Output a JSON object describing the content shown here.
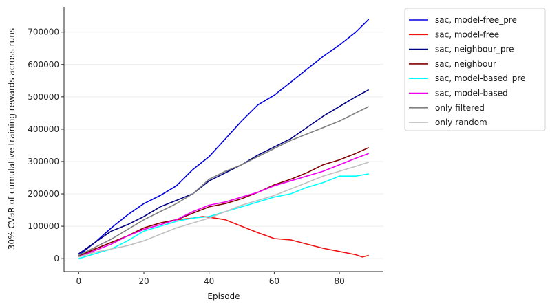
{
  "chart_data": {
    "type": "line",
    "title": "",
    "xlabel": "Episode",
    "ylabel": "30% CVaR of cumulative training rewards across runs",
    "xlim": [
      -4.5,
      93.5
    ],
    "ylim": [
      -40000,
      778000
    ],
    "xticks": [
      0,
      20,
      40,
      60,
      80
    ],
    "yticks": [
      0,
      100000,
      200000,
      300000,
      400000,
      500000,
      600000,
      700000
    ],
    "ygrid": true,
    "legend_position": "outside-right-top",
    "series": [
      {
        "name": "sac, model-free_pre",
        "color": "#0000dd",
        "x": [
          0,
          5,
          10,
          15,
          20,
          25,
          30,
          35,
          40,
          45,
          50,
          55,
          60,
          65,
          70,
          75,
          80,
          85,
          89
        ],
        "y": [
          10000,
          50000,
          95000,
          135000,
          170000,
          195000,
          225000,
          275000,
          315000,
          370000,
          425000,
          475000,
          505000,
          545000,
          585000,
          625000,
          660000,
          700000,
          740000
        ]
      },
      {
        "name": "sac, model-free",
        "color": "#ee1111",
        "x": [
          0,
          5,
          10,
          15,
          20,
          25,
          30,
          35,
          38,
          40,
          45,
          50,
          55,
          60,
          65,
          70,
          75,
          80,
          85,
          87,
          89
        ],
        "y": [
          5000,
          30000,
          50000,
          70000,
          95000,
          110000,
          120000,
          125000,
          130000,
          128000,
          120000,
          100000,
          80000,
          62000,
          58000,
          45000,
          32000,
          22000,
          12000,
          5000,
          10000
        ]
      },
      {
        "name": "sac, neighbour_pre",
        "color": "#000080",
        "x": [
          0,
          5,
          10,
          15,
          20,
          25,
          30,
          35,
          40,
          45,
          50,
          55,
          60,
          65,
          70,
          75,
          80,
          85,
          89
        ],
        "y": [
          15000,
          50000,
          85000,
          105000,
          130000,
          160000,
          180000,
          200000,
          240000,
          265000,
          290000,
          320000,
          345000,
          370000,
          405000,
          440000,
          470000,
          500000,
          522000
        ]
      },
      {
        "name": "sac, neighbour",
        "color": "#800000",
        "x": [
          0,
          5,
          10,
          15,
          20,
          25,
          30,
          35,
          40,
          45,
          50,
          55,
          60,
          65,
          70,
          75,
          80,
          85,
          89
        ],
        "y": [
          8000,
          30000,
          50000,
          70000,
          95000,
          110000,
          120000,
          140000,
          160000,
          170000,
          185000,
          205000,
          228000,
          245000,
          265000,
          290000,
          305000,
          325000,
          343000
        ]
      },
      {
        "name": "sac, model-based_pre",
        "color": "#00ffff",
        "x": [
          0,
          5,
          10,
          15,
          20,
          25,
          30,
          35,
          40,
          45,
          50,
          55,
          60,
          65,
          70,
          75,
          80,
          85,
          89
        ],
        "y": [
          0,
          15000,
          30000,
          55000,
          85000,
          100000,
          115000,
          125000,
          130000,
          145000,
          160000,
          175000,
          190000,
          200000,
          220000,
          235000,
          255000,
          255000,
          262000
        ]
      },
      {
        "name": "sac, model-based",
        "color": "#ee00ee",
        "x": [
          0,
          5,
          10,
          15,
          20,
          25,
          30,
          35,
          40,
          45,
          50,
          55,
          60,
          65,
          70,
          75,
          80,
          85,
          89
        ],
        "y": [
          5000,
          25000,
          45000,
          70000,
          90000,
          105000,
          120000,
          145000,
          165000,
          175000,
          190000,
          205000,
          225000,
          240000,
          255000,
          270000,
          290000,
          310000,
          325000
        ]
      },
      {
        "name": "only filtered",
        "color": "#808080",
        "x": [
          0,
          5,
          10,
          15,
          20,
          25,
          30,
          35,
          40,
          45,
          50,
          55,
          60,
          65,
          70,
          75,
          80,
          85,
          89
        ],
        "y": [
          10000,
          35000,
          60000,
          90000,
          120000,
          145000,
          170000,
          200000,
          245000,
          270000,
          290000,
          315000,
          340000,
          365000,
          385000,
          405000,
          425000,
          450000,
          470000
        ]
      },
      {
        "name": "only random",
        "color": "#c0c0c0",
        "x": [
          0,
          5,
          10,
          15,
          20,
          25,
          30,
          35,
          40,
          45,
          50,
          55,
          60,
          65,
          70,
          75,
          80,
          85,
          89
        ],
        "y": [
          5000,
          20000,
          30000,
          40000,
          55000,
          75000,
          95000,
          110000,
          125000,
          145000,
          165000,
          180000,
          195000,
          215000,
          235000,
          255000,
          270000,
          285000,
          298000
        ]
      }
    ]
  }
}
